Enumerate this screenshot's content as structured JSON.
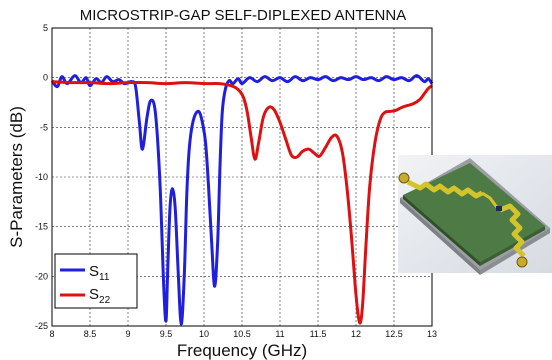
{
  "chart_data": {
    "type": "line",
    "title": "MICROSTRIP-GAP SELF-DIPLEXED ANTENNA",
    "xlabel": "Frequency (GHz)",
    "ylabel": "S-Parameters (dB)",
    "xlim": [
      8,
      13
    ],
    "ylim": [
      -25,
      5
    ],
    "xticks": [
      8,
      8.5,
      9,
      9.5,
      10,
      10.5,
      11,
      11.5,
      12,
      12.5,
      13
    ],
    "yticks": [
      5,
      0,
      -5,
      -10,
      -15,
      -20,
      -25
    ],
    "xtick_labels": [
      "8",
      "8.5",
      "9",
      "9.5",
      "10",
      "10.5",
      "11",
      "11.5",
      "12",
      "12.5",
      "13"
    ],
    "ytick_labels": [
      "5",
      "0",
      "-5",
      "-10",
      "-15",
      "-20",
      "-25"
    ],
    "grid": "dashed",
    "legend_position": "bottom-left",
    "inset": "antenna-render",
    "series": [
      {
        "name": "S",
        "name_sub": "11",
        "color": "#1f1fdd",
        "x": [
          8.0,
          8.07,
          8.13,
          8.2,
          8.3,
          8.38,
          8.45,
          8.5,
          8.58,
          8.65,
          8.72,
          8.8,
          8.88,
          8.95,
          9.0,
          9.05,
          9.1,
          9.15,
          9.19,
          9.25,
          9.3,
          9.36,
          9.42,
          9.47,
          9.5,
          9.52,
          9.55,
          9.58,
          9.62,
          9.66,
          9.7,
          9.74,
          9.77,
          9.79,
          9.81,
          9.84,
          9.88,
          9.93,
          9.97,
          10.02,
          10.06,
          10.1,
          10.14,
          10.18,
          10.21,
          10.24,
          10.28,
          10.33,
          10.38,
          10.45,
          10.5,
          10.6,
          10.7,
          10.8,
          10.9,
          11.0,
          11.1,
          11.2,
          11.3,
          11.4,
          11.5,
          11.6,
          11.7,
          11.8,
          11.9,
          12.0,
          12.1,
          12.2,
          12.3,
          12.4,
          12.5,
          12.6,
          12.7,
          12.8,
          12.9,
          12.95,
          13.0
        ],
        "y": [
          -0.3,
          -0.9,
          0.1,
          -0.6,
          0.2,
          -0.5,
          0.0,
          -0.8,
          -0.1,
          -0.5,
          0.1,
          -0.4,
          -0.2,
          -0.6,
          -0.5,
          -0.4,
          -0.9,
          -4.5,
          -7.2,
          -4.0,
          -2.3,
          -3.5,
          -10.5,
          -21.0,
          -24.5,
          -20.0,
          -13.5,
          -11.2,
          -13.0,
          -19.5,
          -24.8,
          -20.0,
          -12.5,
          -9.0,
          -6.8,
          -5.0,
          -3.8,
          -3.4,
          -4.2,
          -6.5,
          -11.0,
          -16.5,
          -21.0,
          -16.5,
          -9.0,
          -3.5,
          -1.2,
          -0.3,
          -0.6,
          -0.1,
          -0.6,
          0.0,
          -0.4,
          0.1,
          -0.3,
          0.0,
          -0.4,
          0.1,
          -0.3,
          0.0,
          -0.2,
          0.1,
          -0.3,
          0.0,
          -0.2,
          0.1,
          -0.2,
          0.0,
          -0.3,
          0.1,
          -0.2,
          0.0,
          -0.3,
          0.2,
          -0.4,
          -0.1,
          -0.6
        ]
      },
      {
        "name": "S",
        "name_sub": "22",
        "color": "#dd1111",
        "x": [
          8.0,
          8.25,
          8.5,
          8.75,
          9.0,
          9.25,
          9.5,
          9.75,
          10.0,
          10.2,
          10.35,
          10.45,
          10.52,
          10.57,
          10.62,
          10.67,
          10.72,
          10.78,
          10.85,
          10.92,
          11.0,
          11.08,
          11.15,
          11.22,
          11.3,
          11.38,
          11.45,
          11.52,
          11.6,
          11.68,
          11.75,
          11.82,
          11.88,
          11.94,
          11.99,
          12.03,
          12.06,
          12.09,
          12.13,
          12.18,
          12.25,
          12.32,
          12.38,
          12.45,
          12.52,
          12.6,
          12.68,
          12.76,
          12.84,
          12.9,
          12.95,
          13.0
        ],
        "y": [
          -0.4,
          -0.5,
          -0.5,
          -0.6,
          -0.5,
          -0.5,
          -0.6,
          -0.5,
          -0.6,
          -0.6,
          -0.8,
          -1.2,
          -2.0,
          -3.5,
          -6.0,
          -8.2,
          -6.5,
          -4.0,
          -3.0,
          -3.2,
          -4.5,
          -6.3,
          -7.8,
          -8.0,
          -7.4,
          -7.2,
          -7.6,
          -7.9,
          -7.0,
          -6.0,
          -5.9,
          -7.5,
          -11.0,
          -16.0,
          -21.0,
          -24.0,
          -24.6,
          -22.5,
          -17.0,
          -11.0,
          -6.5,
          -4.2,
          -3.5,
          -3.4,
          -3.3,
          -3.0,
          -2.8,
          -2.6,
          -2.2,
          -1.6,
          -1.1,
          -0.8
        ]
      }
    ]
  }
}
